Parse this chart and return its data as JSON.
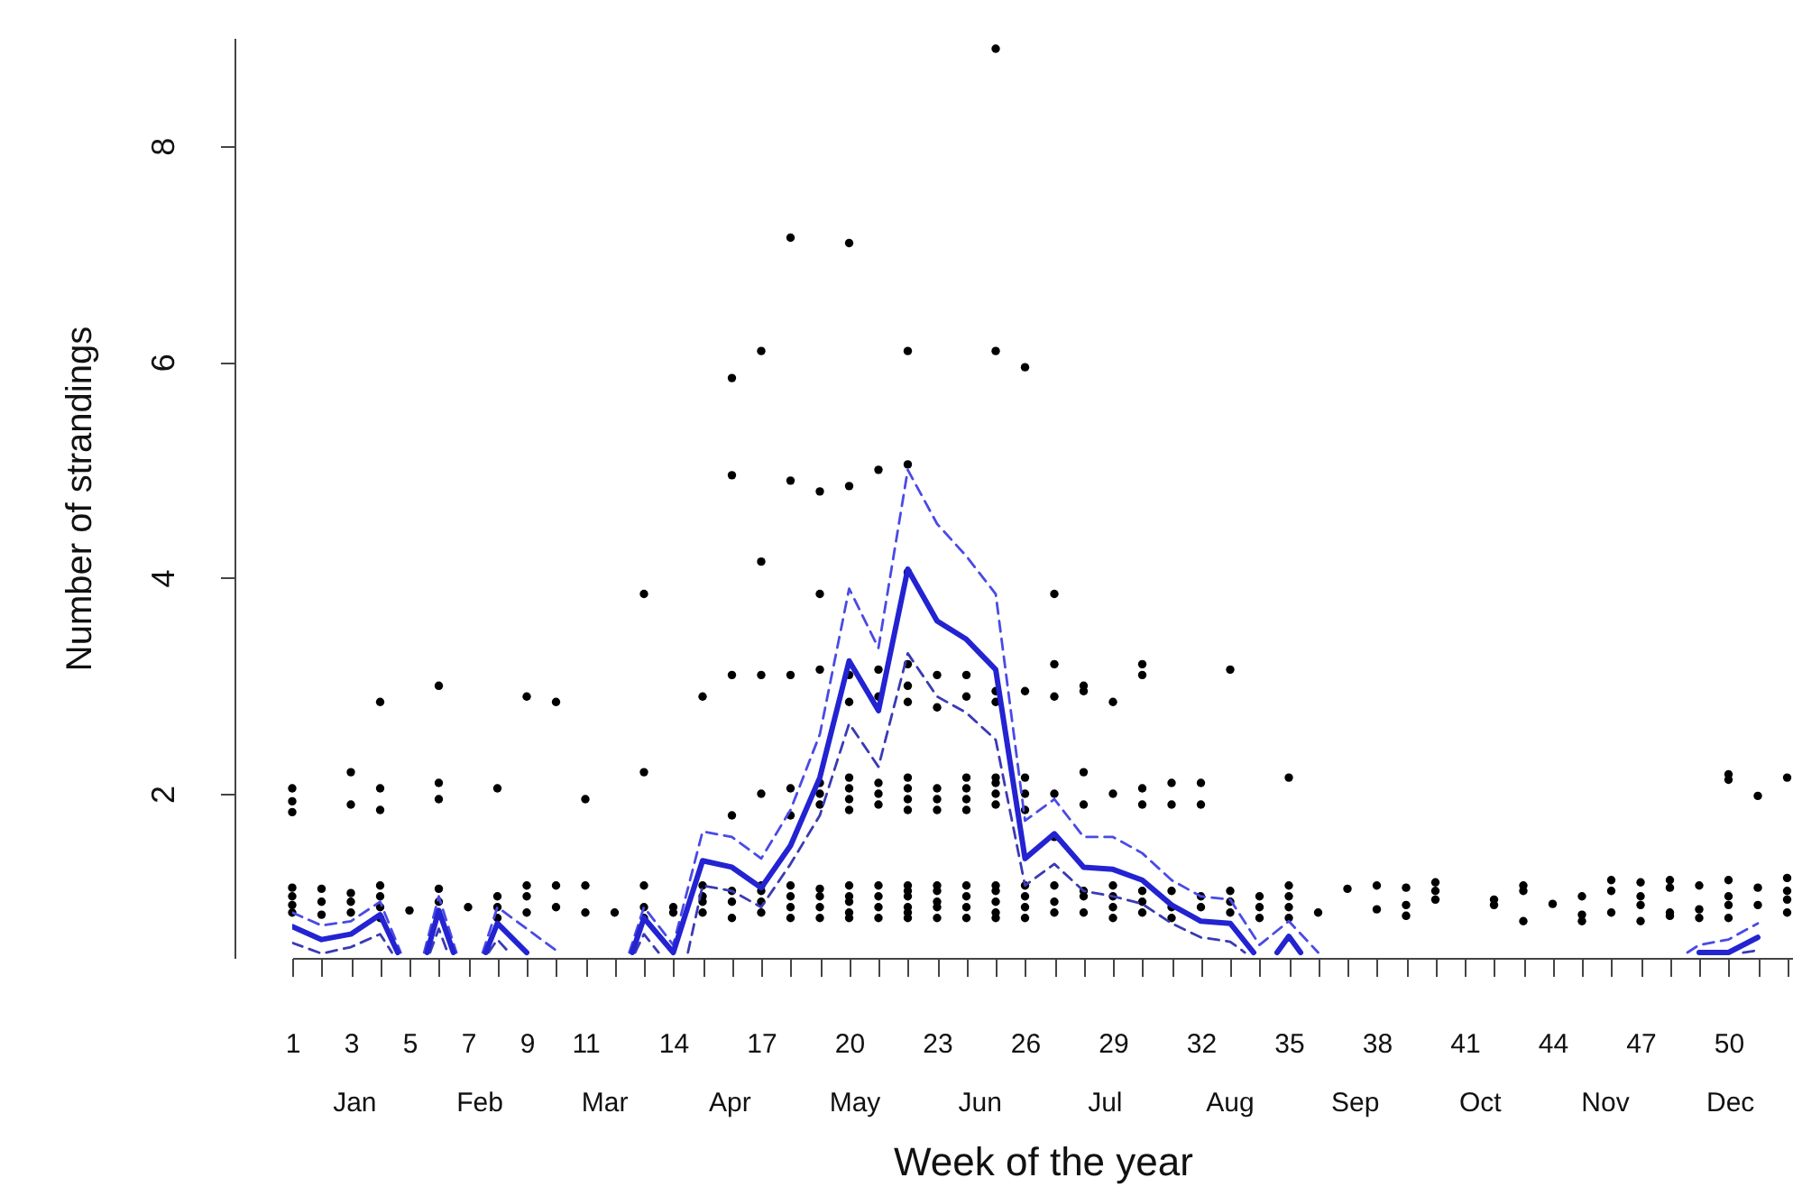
{
  "chart_data": {
    "type": "scatter",
    "xlabel": "Week of the year",
    "ylabel": "Number of strandings",
    "grid": false,
    "xlim": [
      1,
      52.2
    ],
    "ylim": [
      0.48,
      9
    ],
    "xticks": [
      1,
      {
        "value": 2,
        "label": null
      },
      3,
      {
        "value": 4,
        "label": null
      },
      5,
      {
        "value": 6,
        "label": null
      },
      7,
      {
        "value": 8,
        "label": null
      },
      9,
      {
        "value": 10,
        "label": null
      },
      11,
      {
        "value": 12,
        "label": null
      },
      {
        "value": 13,
        "label": null
      },
      14,
      {
        "value": 15,
        "label": null
      },
      {
        "value": 16,
        "label": null
      },
      17,
      {
        "value": 18,
        "label": null
      },
      {
        "value": 19,
        "label": null
      },
      20,
      {
        "value": 21,
        "label": null
      },
      {
        "value": 22,
        "label": null
      },
      23,
      {
        "value": 24,
        "label": null
      },
      {
        "value": 25,
        "label": null
      },
      26,
      {
        "value": 27,
        "label": null
      },
      {
        "value": 28,
        "label": null
      },
      29,
      {
        "value": 30,
        "label": null
      },
      {
        "value": 31,
        "label": null
      },
      32,
      {
        "value": 33,
        "label": null
      },
      {
        "value": 34,
        "label": null
      },
      35,
      {
        "value": 36,
        "label": null
      },
      {
        "value": 37,
        "label": null
      },
      38,
      {
        "value": 39,
        "label": null
      },
      {
        "value": 40,
        "label": null
      },
      41,
      {
        "value": 42,
        "label": null
      },
      {
        "value": 43,
        "label": null
      },
      44,
      {
        "value": 45,
        "label": null
      },
      {
        "value": 46,
        "label": null
      },
      47,
      {
        "value": 48,
        "label": null
      },
      {
        "value": 49,
        "label": null
      },
      50,
      {
        "value": 51,
        "label": null
      },
      {
        "value": 52,
        "label": null
      }
    ],
    "yticks": [
      2,
      4,
      6,
      8
    ],
    "annotations": [
      "Jan",
      "Feb",
      "Mar",
      "Apr",
      "May",
      "Jun",
      "Jul",
      "Aug",
      "Sep",
      "Oct",
      "Nov",
      "Dec"
    ],
    "series": [
      {
        "color": "#000000",
        "marker": "circle",
        "x": [
          1,
          1,
          1,
          1,
          1,
          1,
          1,
          2,
          2,
          2,
          3,
          3,
          3,
          3,
          3,
          4,
          4,
          4,
          4,
          4,
          4,
          4,
          5,
          6,
          6,
          6,
          6,
          6,
          7,
          8,
          8,
          8,
          8,
          9,
          9,
          9,
          9,
          10,
          10,
          10,
          11,
          11,
          11,
          12,
          13,
          13,
          13,
          13,
          13,
          14,
          14,
          15,
          15,
          15,
          15,
          15,
          16,
          16,
          16,
          16,
          16,
          16,
          16,
          17,
          17,
          17,
          17,
          17,
          17,
          17,
          17,
          18,
          18,
          18,
          18,
          18,
          18,
          18,
          18,
          18,
          19,
          19,
          19,
          19,
          19,
          19,
          19,
          19,
          19,
          19,
          20,
          20,
          20,
          20,
          20,
          20,
          20,
          20,
          20,
          20,
          20,
          20,
          20,
          21,
          21,
          21,
          21,
          21,
          21,
          21,
          21,
          21,
          21,
          22,
          22,
          22,
          22,
          22,
          22,
          22,
          22,
          22,
          22,
          22,
          22,
          22,
          22,
          22,
          22,
          23,
          23,
          23,
          23,
          23,
          23,
          23,
          23,
          23,
          23,
          24,
          24,
          24,
          24,
          24,
          24,
          24,
          24,
          24,
          24,
          25,
          25,
          25,
          25,
          25,
          25,
          25,
          25,
          25,
          25,
          25,
          25,
          25,
          26,
          26,
          26,
          26,
          26,
          26,
          26,
          26,
          26,
          27,
          27,
          27,
          27,
          27,
          27,
          27,
          27,
          28,
          28,
          28,
          28,
          28,
          28,
          28,
          29,
          29,
          29,
          29,
          29,
          29,
          30,
          30,
          30,
          30,
          30,
          30,
          30,
          31,
          31,
          31,
          31,
          31,
          32,
          32,
          32,
          32,
          33,
          33,
          33,
          33,
          34,
          34,
          34,
          35,
          35,
          35,
          35,
          35,
          36,
          37,
          38,
          38,
          39,
          39,
          39,
          40,
          40,
          40,
          42,
          42,
          43,
          43,
          43,
          44,
          45,
          45,
          45,
          46,
          46,
          46,
          47,
          47,
          47,
          47,
          48,
          48,
          48,
          48,
          49,
          49,
          49,
          50,
          50,
          50,
          50,
          50,
          50,
          51,
          51,
          51,
          52,
          52,
          52,
          52,
          52
        ],
        "values": [
          0.9,
          0.97,
          1.05,
          1.13,
          1.83,
          1.93,
          2.05,
          0.88,
          1.0,
          1.12,
          0.9,
          1.0,
          1.08,
          1.9,
          2.2,
          0.85,
          0.95,
          1.05,
          1.15,
          1.85,
          2.05,
          2.85,
          0.92,
          1.0,
          1.12,
          1.95,
          2.1,
          3.0,
          0.95,
          0.85,
          0.95,
          1.05,
          2.05,
          0.9,
          1.05,
          1.15,
          2.9,
          0.95,
          1.15,
          2.85,
          0.9,
          1.15,
          1.95,
          0.9,
          0.85,
          0.95,
          1.15,
          2.2,
          3.85,
          0.9,
          0.95,
          0.9,
          1.0,
          1.05,
          1.15,
          2.9,
          0.85,
          1.0,
          1.1,
          1.8,
          3.1,
          4.95,
          5.85,
          0.9,
          1.0,
          1.1,
          1.15,
          2.0,
          3.1,
          4.15,
          6.1,
          0.85,
          0.95,
          1.05,
          1.15,
          1.8,
          2.05,
          3.1,
          4.9,
          7.15,
          0.85,
          0.95,
          1.05,
          1.12,
          1.9,
          2.0,
          2.1,
          3.15,
          3.85,
          4.8,
          0.85,
          0.9,
          1.0,
          1.05,
          1.15,
          1.85,
          1.95,
          2.05,
          2.15,
          2.85,
          3.1,
          4.85,
          7.1,
          0.85,
          0.95,
          1.05,
          1.15,
          1.9,
          2.0,
          2.1,
          2.9,
          3.15,
          5.0,
          0.85,
          0.9,
          0.95,
          1.05,
          1.1,
          1.15,
          1.85,
          1.95,
          2.05,
          2.15,
          2.85,
          3.0,
          3.2,
          4.05,
          5.05,
          6.1,
          0.85,
          0.95,
          1.0,
          1.1,
          1.15,
          1.85,
          1.95,
          2.05,
          2.8,
          3.1,
          0.85,
          0.95,
          1.05,
          1.15,
          1.85,
          1.95,
          2.05,
          2.15,
          2.9,
          3.1,
          0.85,
          0.9,
          1.0,
          1.1,
          1.15,
          1.9,
          2.0,
          2.1,
          2.15,
          2.85,
          2.95,
          6.1,
          8.9,
          0.85,
          0.95,
          1.05,
          1.15,
          1.85,
          2.0,
          2.15,
          2.95,
          5.95,
          0.9,
          1.0,
          1.15,
          1.6,
          2.0,
          2.9,
          3.2,
          3.85,
          0.9,
          1.05,
          1.1,
          1.9,
          2.2,
          2.95,
          3.0,
          0.85,
          0.95,
          1.05,
          1.15,
          2.0,
          2.85,
          0.9,
          1.0,
          1.1,
          1.9,
          2.05,
          3.1,
          3.2,
          0.85,
          0.95,
          1.1,
          1.9,
          2.1,
          0.95,
          1.05,
          1.9,
          2.1,
          0.9,
          1.0,
          1.1,
          3.15,
          0.85,
          0.95,
          1.05,
          0.85,
          0.95,
          1.05,
          1.15,
          2.15,
          0.9,
          1.12,
          0.93,
          1.15,
          0.87,
          0.97,
          1.13,
          1.02,
          1.1,
          1.18,
          0.97,
          1.02,
          0.82,
          1.1,
          1.15,
          0.98,
          0.82,
          0.88,
          1.05,
          0.9,
          1.1,
          1.2,
          0.82,
          0.97,
          1.05,
          1.18,
          0.87,
          0.9,
          1.13,
          1.2,
          0.85,
          0.93,
          1.15,
          0.85,
          0.97,
          1.05,
          1.2,
          2.13,
          2.18,
          0.97,
          1.13,
          1.98,
          0.9,
          1.02,
          1.1,
          1.22,
          2.15
        ]
      },
      {
        "type": "line",
        "color": "#4a4ae6",
        "line_style": "dashed",
        "x": [
          1,
          2,
          3,
          4,
          4.7,
          5.1,
          5.5,
          6,
          6.6,
          7,
          7.5,
          8,
          9,
          10,
          11,
          12.5,
          13,
          14,
          15,
          16,
          17,
          18,
          19,
          20,
          21,
          22,
          23,
          24,
          25,
          26,
          27,
          28,
          29,
          30,
          31,
          32,
          33,
          34,
          35,
          36,
          40,
          48.6,
          49,
          50,
          51
        ],
        "values": [
          0.9,
          0.78,
          0.82,
          1.0,
          0.53,
          null,
          0.53,
          1.05,
          0.53,
          null,
          0.53,
          0.95,
          0.75,
          0.55,
          null,
          0.53,
          0.95,
          0.6,
          1.65,
          1.6,
          1.4,
          1.85,
          2.55,
          3.9,
          3.35,
          5.0,
          4.5,
          4.2,
          3.85,
          1.75,
          1.95,
          1.6,
          1.6,
          1.45,
          1.2,
          1.05,
          1.02,
          0.6,
          0.82,
          0.53,
          null,
          0.53,
          0.6,
          0.65,
          0.8
        ]
      },
      {
        "type": "line",
        "color": "#3a3ab4",
        "line_style": "dashed",
        "x": [
          1,
          2,
          3,
          4,
          4.4,
          5,
          5.7,
          6,
          6.3,
          7,
          7.7,
          8,
          8.4,
          10,
          12.7,
          13,
          13.5,
          14,
          14.5,
          15,
          16,
          17,
          18,
          19,
          20,
          21,
          22,
          23,
          24,
          25,
          26,
          27,
          28,
          29,
          30,
          31,
          32,
          33,
          33.5,
          42,
          50.5,
          51
        ],
        "values": [
          0.62,
          0.52,
          0.58,
          0.7,
          0.53,
          null,
          0.53,
          0.75,
          0.53,
          null,
          0.53,
          0.65,
          0.53,
          null,
          0.53,
          0.7,
          0.53,
          null,
          0.53,
          1.15,
          1.1,
          0.95,
          1.35,
          1.8,
          2.65,
          2.25,
          3.3,
          2.9,
          2.75,
          2.5,
          1.15,
          1.35,
          1.1,
          1.05,
          0.98,
          0.8,
          0.67,
          0.63,
          0.53,
          null,
          0.53,
          0.55
        ]
      },
      {
        "type": "line",
        "color": "#2323d2",
        "line_style": "solid",
        "x": [
          1,
          2,
          3,
          4,
          4.6,
          5.1,
          5.6,
          6,
          6.5,
          7,
          7.6,
          8,
          9,
          11,
          12.6,
          13,
          14,
          15,
          16,
          17,
          18,
          19,
          20,
          21,
          22,
          23,
          24,
          25,
          26,
          27,
          28,
          29,
          30,
          31,
          32,
          33,
          33.8,
          34.2,
          34.6,
          35,
          35.4,
          42,
          49,
          50,
          51
        ],
        "values": [
          0.77,
          0.65,
          0.7,
          0.88,
          0.53,
          null,
          0.53,
          0.92,
          0.53,
          null,
          0.53,
          0.8,
          0.53,
          null,
          0.53,
          0.85,
          0.53,
          1.38,
          1.32,
          1.13,
          1.52,
          2.15,
          3.23,
          2.77,
          4.08,
          3.6,
          3.43,
          3.15,
          1.4,
          1.63,
          1.32,
          1.3,
          1.2,
          0.97,
          0.82,
          0.8,
          0.53,
          null,
          0.53,
          0.68,
          0.53,
          null,
          0.53,
          0.53,
          0.67
        ]
      }
    ]
  }
}
